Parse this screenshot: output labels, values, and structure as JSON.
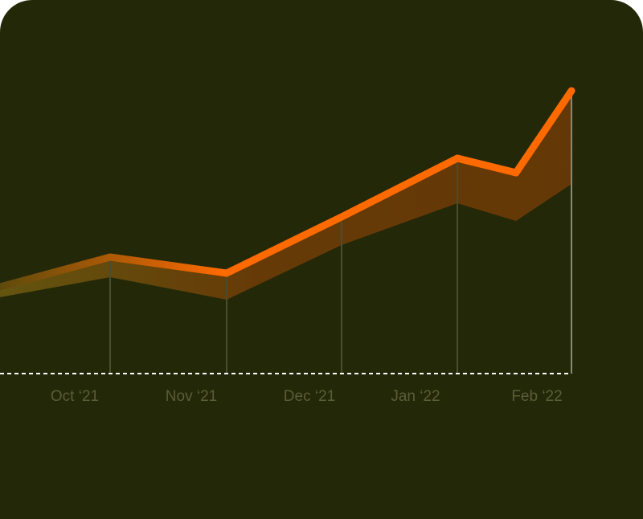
{
  "chart_data": {
    "type": "area-line",
    "x_labels": [
      "Oct ‘21",
      "Nov ‘21",
      "Dec ‘21",
      "Jan ‘22",
      "Feb ‘22"
    ],
    "series": [
      {
        "color": "#ff6a00",
        "values": [
          27,
          36.25,
          31.25,
          48.75,
          67,
          62.5,
          88
        ]
      },
      {
        "color": "#6b3a06",
        "values": [
          23.75,
          30,
          23,
          40,
          53,
          47.5,
          59
        ]
      }
    ],
    "ylim": [
      0,
      100
    ]
  }
}
